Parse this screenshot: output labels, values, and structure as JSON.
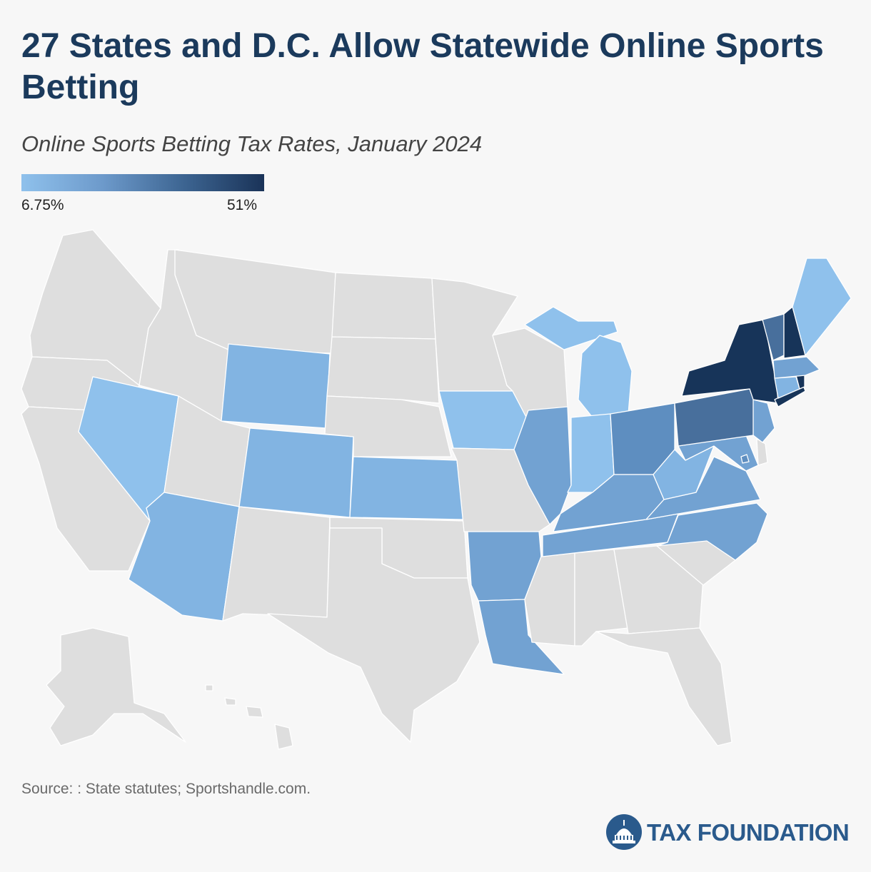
{
  "title": "27 States and D.C. Allow Statewide Online Sports Betting",
  "subtitle": "Online Sports Betting Tax Rates, January 2024",
  "legend": {
    "min_label": "6.75%",
    "max_label": "51%",
    "colors": [
      "#8fc1ec",
      "#6d9acb",
      "#3d6592",
      "#1a3358"
    ]
  },
  "colors": {
    "no_online_betting": "#dedede",
    "tier1": "#8fc1ec",
    "tier2": "#82b4e2",
    "tier3": "#72a2d2",
    "tier4": "#5e8ec0",
    "tier5": "#486f9c",
    "tier6": "#173459"
  },
  "map": {
    "legalized_states": [
      "NV",
      "AZ",
      "WY",
      "CO",
      "KS",
      "IA",
      "IL",
      "IN",
      "MI",
      "OH",
      "KY",
      "TN",
      "AR",
      "LA",
      "WV",
      "VA",
      "NC",
      "MD",
      "NJ",
      "PA",
      "NY",
      "VT",
      "NH",
      "ME",
      "MA",
      "CT",
      "RI",
      "DC"
    ]
  },
  "source": "Source: : State statutes; Sportshandle.com.",
  "brand": {
    "name": "TAX FOUNDATION"
  }
}
